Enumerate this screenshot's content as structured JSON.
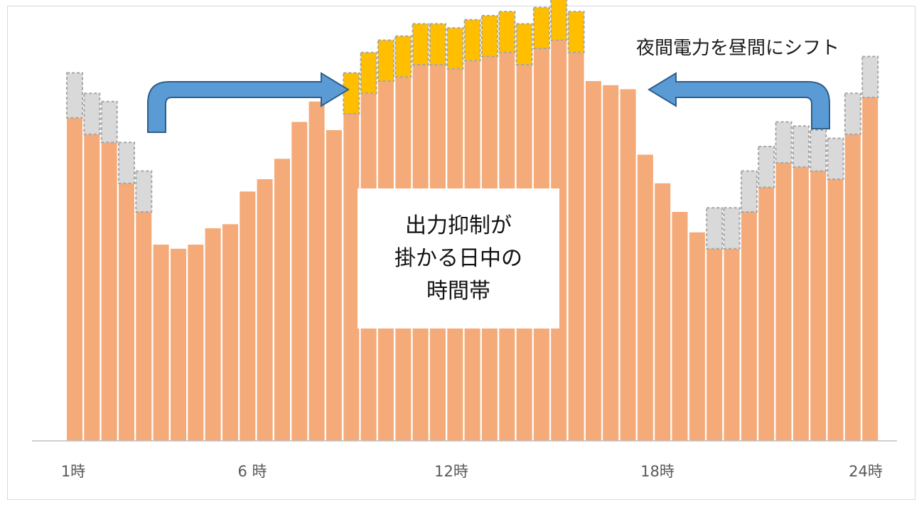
{
  "chart_data": {
    "type": "bar",
    "x_tick_labels": [
      "1時",
      "6 時",
      "12時",
      "18時",
      "24時"
    ],
    "annotations": {
      "shift_label": "夜間電力を昼間にシフト",
      "curtailment_box": "出力抑制が\n掛かる日中の\n時間帯"
    },
    "series": [
      {
        "values": [
          79,
          75,
          73,
          63,
          56,
          48,
          47,
          48,
          52,
          53,
          61,
          64,
          69,
          78,
          83,
          76,
          80,
          85,
          88,
          89,
          92,
          92,
          91,
          93,
          94,
          95,
          92,
          96,
          98,
          95,
          88,
          87,
          86,
          70,
          63,
          56,
          51,
          47,
          47,
          56,
          62,
          68,
          67,
          66,
          64,
          75,
          84
        ]
      },
      {
        "values": [
          11,
          10,
          10,
          10,
          10,
          0,
          0,
          0,
          0,
          0,
          0,
          0,
          0,
          0,
          0,
          0,
          10,
          10,
          10,
          10,
          10,
          10,
          10,
          10,
          10,
          10,
          10,
          10,
          10,
          10,
          0,
          0,
          0,
          0,
          0,
          0,
          0,
          10,
          10,
          10,
          10,
          10,
          10,
          10,
          10,
          10,
          10
        ]
      }
    ],
    "colors": {
      "base": "#f4aa79",
      "shifted_in": "#ffbf00",
      "shifted_out": "#d9d9d9",
      "dash": "#a6a6a6",
      "arrow": "#5b9bd5",
      "arrow_edge": "#2e5e8a"
    },
    "grid": false,
    "legend": "none"
  }
}
